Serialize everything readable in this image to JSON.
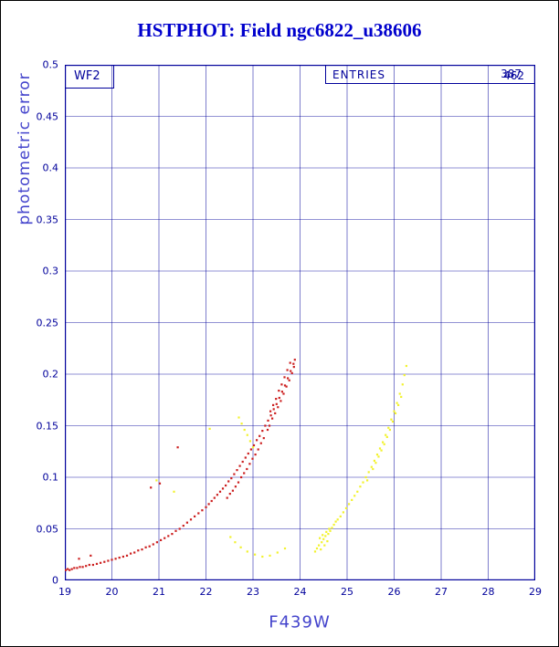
{
  "title": "HSTPHOT: Field ngc6822_u38606",
  "panel_label": "WF2",
  "entries": {
    "label": "ENTRIES",
    "value1": "387",
    "value2": "462"
  },
  "colors": {
    "title_blue": "#0000cd",
    "axis_blue": "#00009b",
    "label_blue": "#4444cc",
    "series_red": "#cc2020",
    "series_yellow": "#f2f22e"
  },
  "chart_data": {
    "type": "scatter",
    "title": "HSTPHOT: Field ngc6822_u38606",
    "xlabel": "F439W",
    "ylabel": "photometric error",
    "xlim": [
      19,
      29
    ],
    "ylim": [
      0,
      0.5
    ],
    "grid": true,
    "legend": "none",
    "xticks": [
      "19",
      "20",
      "21",
      "22",
      "23",
      "24",
      "25",
      "26",
      "27",
      "28",
      "29"
    ],
    "yticks": [
      "0",
      "0.05",
      "0.1",
      "0.15",
      "0.2",
      "0.25",
      "0.3",
      "0.35",
      "0.4",
      "0.45",
      "0.5"
    ],
    "series": [
      {
        "name": "chip-1-red",
        "color": "#cc2020",
        "points": [
          [
            19.02,
            0.01
          ],
          [
            19.06,
            0.011
          ],
          [
            19.1,
            0.01
          ],
          [
            19.15,
            0.011
          ],
          [
            19.2,
            0.012
          ],
          [
            19.26,
            0.012
          ],
          [
            19.32,
            0.013
          ],
          [
            19.38,
            0.013
          ],
          [
            19.45,
            0.014
          ],
          [
            19.52,
            0.015
          ],
          [
            19.6,
            0.015
          ],
          [
            19.68,
            0.016
          ],
          [
            19.76,
            0.017
          ],
          [
            19.84,
            0.018
          ],
          [
            19.92,
            0.019
          ],
          [
            20.0,
            0.02
          ],
          [
            20.08,
            0.021
          ],
          [
            20.16,
            0.022
          ],
          [
            20.24,
            0.023
          ],
          [
            20.32,
            0.024
          ],
          [
            20.4,
            0.026
          ],
          [
            20.48,
            0.027
          ],
          [
            20.56,
            0.029
          ],
          [
            20.64,
            0.03
          ],
          [
            20.72,
            0.032
          ],
          [
            20.8,
            0.033
          ],
          [
            20.88,
            0.035
          ],
          [
            20.96,
            0.037
          ],
          [
            21.04,
            0.039
          ],
          [
            21.12,
            0.041
          ],
          [
            21.2,
            0.043
          ],
          [
            21.28,
            0.045
          ],
          [
            21.36,
            0.048
          ],
          [
            21.44,
            0.05
          ],
          [
            21.52,
            0.053
          ],
          [
            21.6,
            0.056
          ],
          [
            21.68,
            0.059
          ],
          [
            21.76,
            0.062
          ],
          [
            21.84,
            0.065
          ],
          [
            21.92,
            0.068
          ],
          [
            22.0,
            0.071
          ],
          [
            22.06,
            0.074
          ],
          [
            22.12,
            0.077
          ],
          [
            22.18,
            0.08
          ],
          [
            22.24,
            0.083
          ],
          [
            22.3,
            0.086
          ],
          [
            22.36,
            0.089
          ],
          [
            22.42,
            0.092
          ],
          [
            22.48,
            0.096
          ],
          [
            22.54,
            0.099
          ],
          [
            22.6,
            0.103
          ],
          [
            22.66,
            0.107
          ],
          [
            22.72,
            0.111
          ],
          [
            22.78,
            0.115
          ],
          [
            22.84,
            0.119
          ],
          [
            22.9,
            0.123
          ],
          [
            22.96,
            0.127
          ],
          [
            23.02,
            0.131
          ],
          [
            23.08,
            0.136
          ],
          [
            23.14,
            0.14
          ],
          [
            23.2,
            0.145
          ],
          [
            23.26,
            0.15
          ],
          [
            23.32,
            0.155
          ],
          [
            23.38,
            0.16
          ],
          [
            23.44,
            0.166
          ],
          [
            23.5,
            0.171
          ],
          [
            23.56,
            0.177
          ],
          [
            23.62,
            0.183
          ],
          [
            23.68,
            0.189
          ],
          [
            23.74,
            0.196
          ],
          [
            23.8,
            0.203
          ],
          [
            23.86,
            0.21
          ],
          [
            23.35,
            0.15
          ],
          [
            23.41,
            0.157
          ],
          [
            23.47,
            0.162
          ],
          [
            23.53,
            0.168
          ],
          [
            23.59,
            0.174
          ],
          [
            23.65,
            0.181
          ],
          [
            23.71,
            0.188
          ],
          [
            23.77,
            0.194
          ],
          [
            23.83,
            0.201
          ],
          [
            23.87,
            0.207
          ],
          [
            23.89,
            0.214
          ],
          [
            23.79,
            0.211
          ],
          [
            23.73,
            0.204
          ],
          [
            23.67,
            0.197
          ],
          [
            23.61,
            0.19
          ],
          [
            23.55,
            0.184
          ],
          [
            23.49,
            0.176
          ],
          [
            23.43,
            0.17
          ],
          [
            23.37,
            0.164
          ],
          [
            23.31,
            0.146
          ],
          [
            23.23,
            0.138
          ],
          [
            23.17,
            0.133
          ],
          [
            23.11,
            0.127
          ],
          [
            23.05,
            0.122
          ],
          [
            22.99,
            0.118
          ],
          [
            22.93,
            0.113
          ],
          [
            22.87,
            0.108
          ],
          [
            22.81,
            0.104
          ],
          [
            22.75,
            0.1
          ],
          [
            22.69,
            0.095
          ],
          [
            22.63,
            0.091
          ],
          [
            22.57,
            0.087
          ],
          [
            22.51,
            0.084
          ],
          [
            22.45,
            0.08
          ],
          [
            20.83,
            0.09
          ],
          [
            21.02,
            0.094
          ],
          [
            21.4,
            0.129
          ],
          [
            19.3,
            0.021
          ],
          [
            19.55,
            0.024
          ]
        ]
      },
      {
        "name": "chip-2-yellow",
        "color": "#f2f22e",
        "points": [
          [
            24.32,
            0.028
          ],
          [
            24.36,
            0.031
          ],
          [
            24.4,
            0.034
          ],
          [
            24.44,
            0.03
          ],
          [
            24.46,
            0.037
          ],
          [
            24.5,
            0.04
          ],
          [
            24.52,
            0.034
          ],
          [
            24.54,
            0.043
          ],
          [
            24.58,
            0.038
          ],
          [
            24.6,
            0.045
          ],
          [
            24.64,
            0.048
          ],
          [
            24.68,
            0.051
          ],
          [
            24.72,
            0.054
          ],
          [
            24.76,
            0.057
          ],
          [
            24.8,
            0.059
          ],
          [
            24.86,
            0.062
          ],
          [
            24.92,
            0.066
          ],
          [
            24.98,
            0.07
          ],
          [
            25.04,
            0.074
          ],
          [
            25.1,
            0.078
          ],
          [
            25.16,
            0.082
          ],
          [
            25.22,
            0.086
          ],
          [
            25.28,
            0.091
          ],
          [
            25.34,
            0.095
          ],
          [
            25.4,
            0.1
          ],
          [
            25.46,
            0.105
          ],
          [
            25.52,
            0.11
          ],
          [
            25.58,
            0.116
          ],
          [
            25.64,
            0.122
          ],
          [
            25.7,
            0.128
          ],
          [
            25.76,
            0.134
          ],
          [
            25.82,
            0.141
          ],
          [
            25.88,
            0.148
          ],
          [
            25.94,
            0.156
          ],
          [
            26.0,
            0.164
          ],
          [
            26.06,
            0.172
          ],
          [
            26.12,
            0.181
          ],
          [
            26.18,
            0.19
          ],
          [
            26.22,
            0.199
          ],
          [
            26.26,
            0.208
          ],
          [
            25.43,
            0.097
          ],
          [
            25.55,
            0.108
          ],
          [
            25.61,
            0.114
          ],
          [
            25.67,
            0.12
          ],
          [
            25.73,
            0.126
          ],
          [
            25.79,
            0.132
          ],
          [
            25.85,
            0.139
          ],
          [
            25.91,
            0.146
          ],
          [
            25.97,
            0.154
          ],
          [
            26.03,
            0.162
          ],
          [
            26.09,
            0.17
          ],
          [
            26.15,
            0.178
          ],
          [
            24.42,
            0.041
          ],
          [
            24.48,
            0.044
          ],
          [
            24.56,
            0.047
          ],
          [
            24.62,
            0.05
          ],
          [
            22.7,
            0.158
          ],
          [
            22.76,
            0.152
          ],
          [
            22.82,
            0.146
          ],
          [
            22.88,
            0.141
          ],
          [
            22.94,
            0.135
          ],
          [
            23.0,
            0.129
          ],
          [
            22.08,
            0.147
          ],
          [
            22.52,
            0.042
          ],
          [
            22.62,
            0.037
          ],
          [
            22.74,
            0.032
          ],
          [
            22.88,
            0.028
          ],
          [
            23.04,
            0.025
          ],
          [
            23.2,
            0.023
          ],
          [
            23.36,
            0.024
          ],
          [
            23.52,
            0.027
          ],
          [
            23.68,
            0.031
          ],
          [
            20.95,
            0.097
          ],
          [
            21.32,
            0.086
          ]
        ]
      }
    ]
  }
}
